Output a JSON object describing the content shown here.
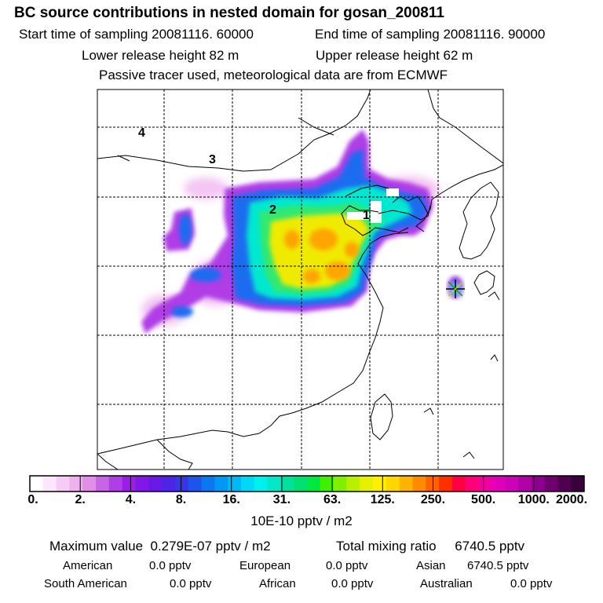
{
  "title": "BC  source contributions in nested domain for gosan_200811",
  "header": {
    "start": "Start time of sampling 20081116. 60000",
    "end": "End time of sampling 20081116. 90000",
    "lower": "Lower release height   82 m",
    "upper": "Upper release height   62 m",
    "tracer": "Passive tracer used, meteorological data are from ECMWF"
  },
  "map": {
    "labels": [
      "1",
      "2",
      "3",
      "4"
    ],
    "receptor_icon": "star-marker-icon"
  },
  "colorbar": {
    "ticks": [
      "0.",
      "2.",
      "4.",
      "8.",
      "16.",
      "31.",
      "63.",
      "125.",
      "250.",
      "500.",
      "1000.",
      "2000."
    ],
    "unit": "10E-10 pptv / m2",
    "colors": [
      "#ffffff",
      "#fbe6fb",
      "#f5ccf5",
      "#eeb0ee",
      "#e08ee8",
      "#c864e6",
      "#b03ee6",
      "#9a1ee6",
      "#8218e8",
      "#6a18e8",
      "#4e24e6",
      "#3636e8",
      "#1e54ec",
      "#0a78f0",
      "#0098f4",
      "#00b8f8",
      "#00d8f8",
      "#00f0f0",
      "#00e8c8",
      "#00e0a0",
      "#00e070",
      "#00e840",
      "#40f000",
      "#80f000",
      "#b8f000",
      "#e8f000",
      "#fff000",
      "#ffd800",
      "#ffb400",
      "#ff8c00",
      "#ff6000",
      "#ff3000",
      "#ff0040",
      "#ff0078",
      "#f000a0",
      "#e000b8",
      "#cc00b8",
      "#b000a8",
      "#900090",
      "#700070",
      "#500050",
      "#3a003a"
    ]
  },
  "stats": {
    "max_label": "Maximum value",
    "max_value": "0.279E-07 pptv / m2",
    "total_label": "Total mixing ratio",
    "total_value": "6740.5 pptv",
    "regions": [
      {
        "name": "American",
        "value": "0.0 pptv"
      },
      {
        "name": "European",
        "value": "0.0 pptv"
      },
      {
        "name": "Asian",
        "value": "6740.5 pptv"
      },
      {
        "name": "South American",
        "value": "0.0 pptv"
      },
      {
        "name": "African",
        "value": "0.0 pptv"
      },
      {
        "name": "Australian",
        "value": "0.0 pptv"
      }
    ]
  }
}
